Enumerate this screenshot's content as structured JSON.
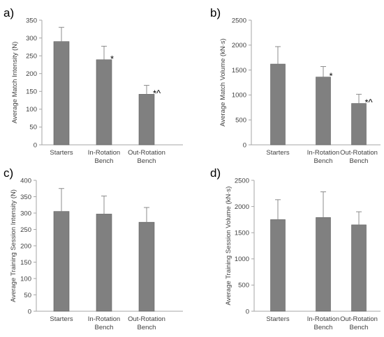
{
  "chart_data": [
    {
      "type": "bar",
      "panel_label": "a)",
      "ylabel": "Average Match Intensity (N)",
      "ylim": [
        0,
        350
      ],
      "yticks": [
        "0",
        "50",
        "100",
        "150",
        "200",
        "250",
        "300",
        "350"
      ],
      "categories": [
        [
          "Starters"
        ],
        [
          "In-Rotation",
          "Bench"
        ],
        [
          "Out-Rotation",
          "Bench"
        ]
      ],
      "values": [
        290,
        239,
        142
      ],
      "errors": [
        40,
        38,
        25
      ],
      "annotations": [
        "",
        "*",
        "*^"
      ],
      "grid": false
    },
    {
      "type": "bar",
      "panel_label": "b)",
      "ylabel": "Average Match Volume (kN·s)",
      "ylim": [
        0,
        2500
      ],
      "yticks": [
        "0",
        "500",
        "1000",
        "1500",
        "2000",
        "2500"
      ],
      "categories": [
        [
          "Starters"
        ],
        [
          "In-Rotation",
          "Bench"
        ],
        [
          "Out-Rotation",
          "Bench"
        ]
      ],
      "values": [
        1620,
        1360,
        830
      ],
      "errors": [
        350,
        210,
        185
      ],
      "annotations": [
        "",
        "*",
        "*^"
      ],
      "grid": false
    },
    {
      "type": "bar",
      "panel_label": "c)",
      "ylabel": "Average Training Session Intensity (N)",
      "ylim": [
        0,
        400
      ],
      "yticks": [
        "0",
        "50",
        "100",
        "150",
        "200",
        "250",
        "300",
        "350",
        "400"
      ],
      "categories": [
        [
          "Starters"
        ],
        [
          "In-Rotation",
          "Bench"
        ],
        [
          "Out-Rotation",
          "Bench"
        ]
      ],
      "values": [
        305,
        297,
        272
      ],
      "errors": [
        70,
        55,
        45
      ],
      "annotations": [
        "",
        "",
        ""
      ],
      "grid": false
    },
    {
      "type": "bar",
      "panel_label": "d)",
      "ylabel": "Average Training Session Volume (kN·s)",
      "ylim": [
        0,
        2500
      ],
      "yticks": [
        "0",
        "500",
        "1000",
        "1500",
        "2000",
        "2500"
      ],
      "categories": [
        [
          "Starters"
        ],
        [
          "In-Rotation",
          "Bench"
        ],
        [
          "Out-Rotation",
          "Bench"
        ]
      ],
      "values": [
        1750,
        1790,
        1650
      ],
      "errors": [
        380,
        490,
        250
      ],
      "annotations": [
        "",
        "",
        ""
      ],
      "grid": false
    }
  ]
}
